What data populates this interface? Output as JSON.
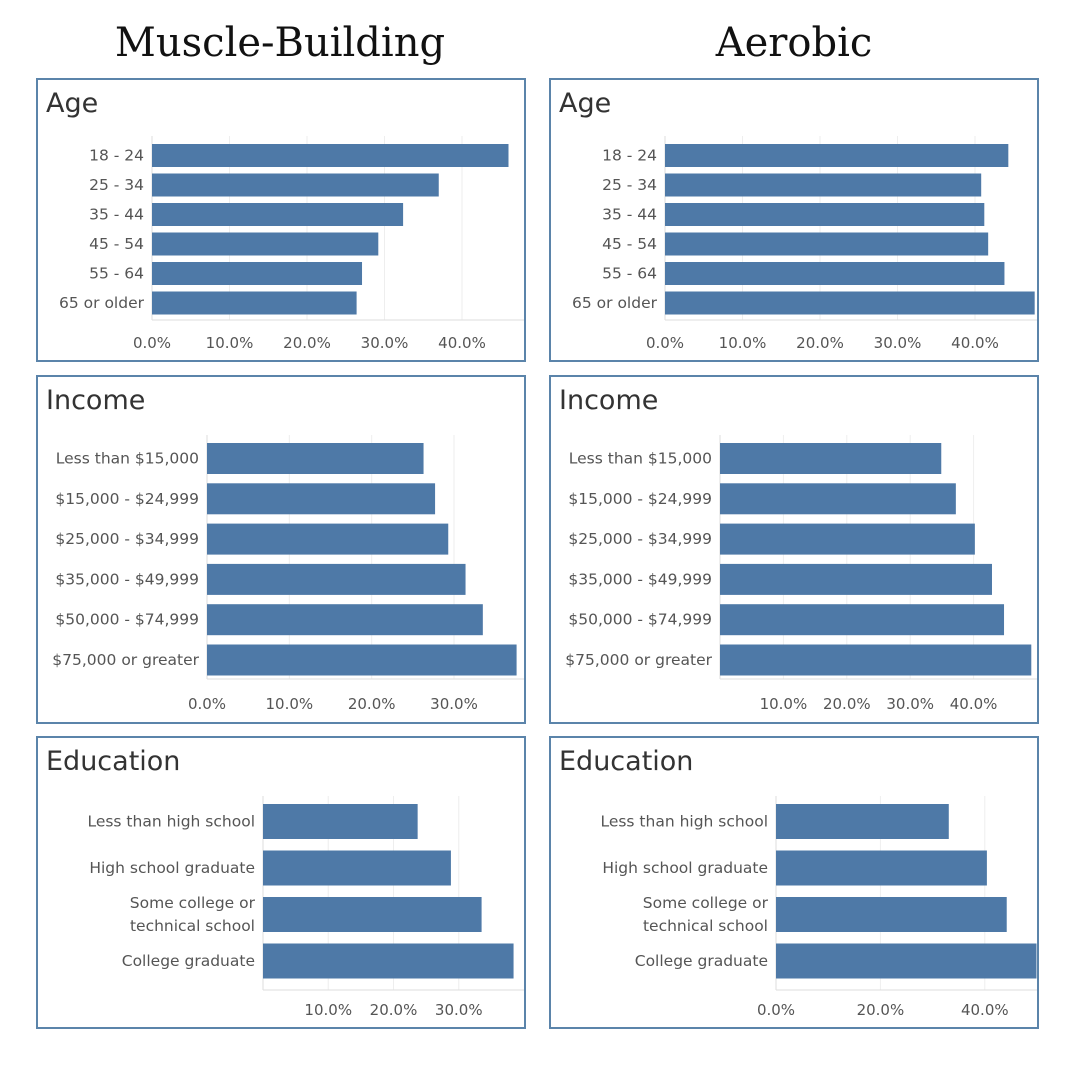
{
  "titles": {
    "left": "Muscle-Building",
    "right": "Aerobic"
  },
  "colors": {
    "bar": "#4e79a7",
    "border": "#5b84aa",
    "label": "#555555",
    "grid": "#eeeeee"
  },
  "chart_data": [
    {
      "type": "bar",
      "title": "Age",
      "categories": [
        "18 - 24",
        "25 - 34",
        "35 - 44",
        "45 - 54",
        "55 - 64",
        "65 or older"
      ],
      "values": [
        46.0,
        37.0,
        32.4,
        29.2,
        27.1,
        26.4
      ],
      "xticks": [
        "0.0%",
        "10.0%",
        "20.0%",
        "30.0%",
        "40.0%"
      ],
      "xlim": [
        0,
        48
      ]
    },
    {
      "type": "bar",
      "title": "Age",
      "categories": [
        "18 - 24",
        "25 - 34",
        "35 - 44",
        "45 - 54",
        "55 - 64",
        "65 or older"
      ],
      "values": [
        44.3,
        40.8,
        41.2,
        41.7,
        43.8,
        47.7
      ],
      "xticks": [
        "0.0%",
        "10.0%",
        "20.0%",
        "30.0%",
        "40.0%"
      ],
      "xlim": [
        0,
        48
      ]
    },
    {
      "type": "bar",
      "title": "Income",
      "categories": [
        "Less than $15,000",
        "$15,000 - $24,999",
        "$25,000 - $34,999",
        "$35,000 - $49,999",
        "$50,000 - $74,999",
        "$75,000 or greater"
      ],
      "values": [
        26.3,
        27.7,
        29.3,
        31.4,
        33.5,
        37.6
      ],
      "xticks": [
        "0.0%",
        "10.0%",
        "20.0%",
        "30.0%"
      ],
      "xlim": [
        0,
        38.5
      ]
    },
    {
      "type": "bar",
      "title": "Income",
      "categories": [
        "Less than $15,000",
        "$15,000 - $24,999",
        "$25,000 - $34,999",
        "$35,000 - $49,999",
        "$50,000 - $74,999",
        "$75,000 or greater"
      ],
      "values": [
        34.9,
        37.2,
        40.2,
        42.9,
        44.8,
        49.1
      ],
      "xticks": [
        "10.0%",
        "20.0%",
        "30.0%",
        "40.0%"
      ],
      "xlim": [
        0,
        50
      ]
    },
    {
      "type": "bar",
      "title": "Education",
      "categories": [
        "Less than high school",
        "High school graduate",
        "Some college or technical school",
        "College graduate"
      ],
      "values": [
        23.7,
        28.8,
        33.5,
        38.4
      ],
      "xticks": [
        "10.0%",
        "20.0%",
        "30.0%"
      ],
      "xlim": [
        0,
        40
      ]
    },
    {
      "type": "bar",
      "title": "Education",
      "categories": [
        "Less than high school",
        "High school graduate",
        "Some college or technical school",
        "College graduate"
      ],
      "values": [
        33.1,
        40.4,
        44.2,
        49.9
      ],
      "xticks": [
        "0.0%",
        "20.0%",
        "40.0%"
      ],
      "xlim": [
        0,
        50
      ]
    }
  ]
}
